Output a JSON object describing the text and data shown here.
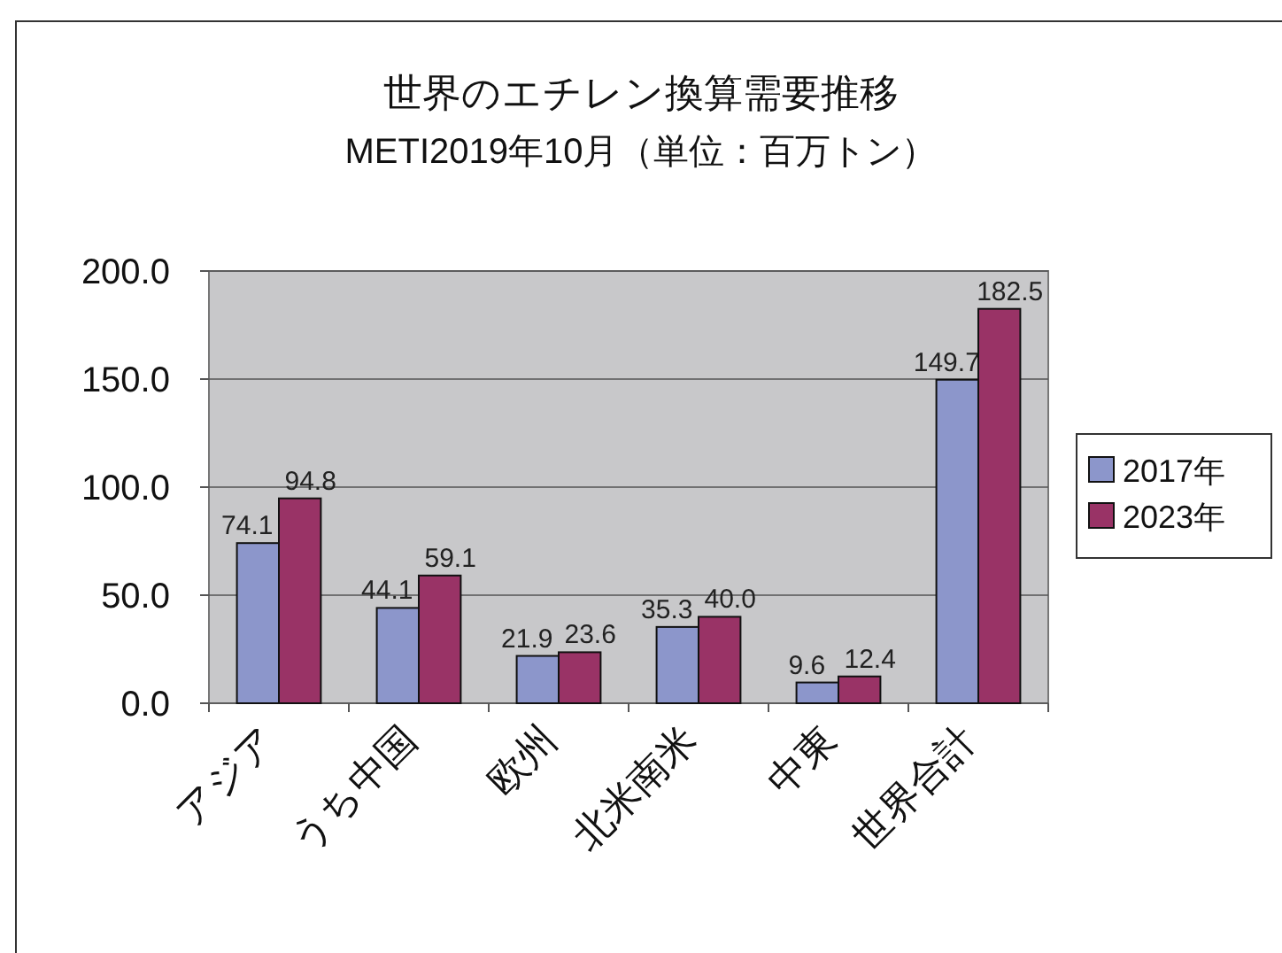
{
  "chart_data": {
    "type": "bar",
    "title": "世界のエチレン換算需要推移",
    "subtitle": "METI2019年10月（単位：百万トン）",
    "categories": [
      "アジア",
      "うち中国",
      "欧州",
      "北米南米",
      "中東",
      "世界合計"
    ],
    "series": [
      {
        "name": "2017年",
        "color": "#8c96cb",
        "values": [
          74.1,
          44.1,
          21.9,
          35.3,
          9.6,
          149.7
        ],
        "value_labels": [
          "74.1",
          "44.1",
          "21.9",
          "35.3",
          "9.6",
          "149.7"
        ]
      },
      {
        "name": "2023年",
        "color": "#993366",
        "values": [
          94.8,
          59.1,
          23.6,
          40.0,
          12.4,
          182.5
        ],
        "value_labels": [
          "94.8",
          "59.1",
          "23.6",
          "40.0",
          "12.4",
          "182.5"
        ]
      }
    ],
    "ylim": [
      0,
      200
    ],
    "yticks": [
      {
        "value": 0,
        "label": "0.0"
      },
      {
        "value": 50,
        "label": "50.0"
      },
      {
        "value": 100,
        "label": "100.0"
      },
      {
        "value": 150,
        "label": "150.0"
      },
      {
        "value": 200,
        "label": "200.0"
      }
    ],
    "grid": "y",
    "legend": "right"
  }
}
